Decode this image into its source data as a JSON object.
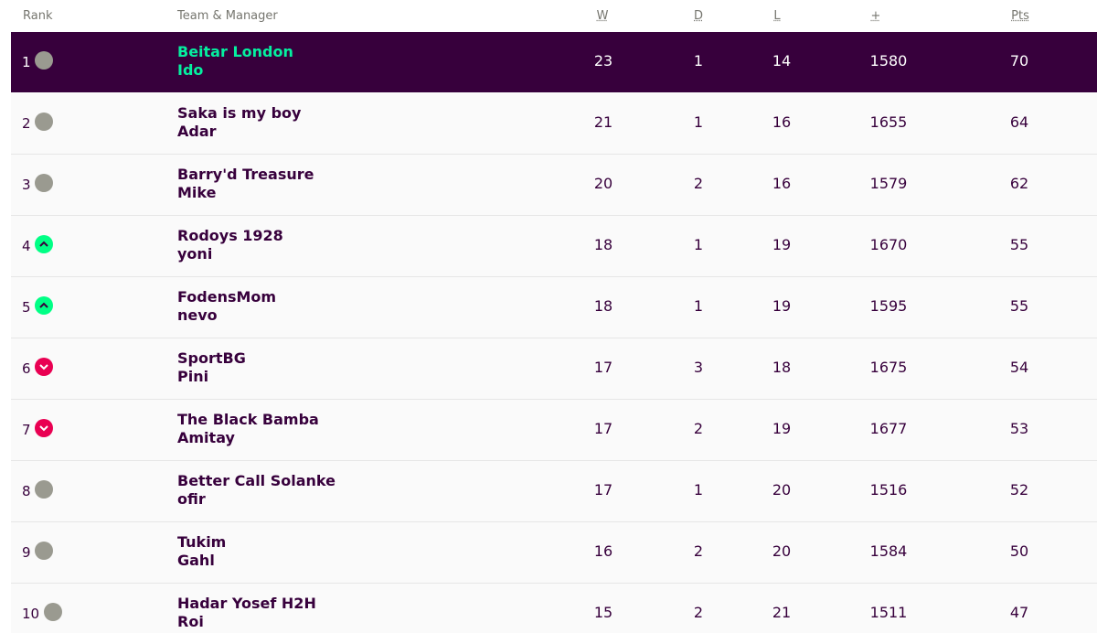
{
  "table": {
    "header": [
      "Rank",
      "Team & Manager",
      "W",
      "D",
      "L",
      "+",
      "Pts"
    ],
    "rows": [
      {
        "rank": 1,
        "team": "Beitar London",
        "manager": "Ido",
        "w": 23,
        "d": 1,
        "l": 14,
        "plus": 1580,
        "pts": 70
      },
      {
        "rank": 2,
        "team": "Saka is my boy",
        "manager": "Adar",
        "w": 21,
        "d": 1,
        "l": 16,
        "plus": 1655,
        "pts": 64
      },
      {
        "rank": 3,
        "team": "Barry'd Treasure",
        "manager": "Mike",
        "w": 20,
        "d": 2,
        "l": 16,
        "plus": 1579,
        "pts": 62
      },
      {
        "rank": 4,
        "team": "Rodoys 1928",
        "manager": "yoni",
        "w": 18,
        "d": 1,
        "l": 19,
        "plus": 1670,
        "pts": 55
      },
      {
        "rank": 5,
        "team": "FodensMom",
        "manager": "nevo",
        "w": 18,
        "d": 1,
        "l": 19,
        "plus": 1595,
        "pts": 55
      },
      {
        "rank": 6,
        "team": "SportBG",
        "manager": "Pini",
        "w": 17,
        "d": 3,
        "l": 18,
        "plus": 1675,
        "pts": 54
      },
      {
        "rank": 7,
        "team": "The Black Bamba",
        "manager": "Amitay",
        "w": 17,
        "d": 2,
        "l": 19,
        "plus": 1677,
        "pts": 53
      },
      {
        "rank": 8,
        "team": "Better Call Solanke",
        "manager": "ofir",
        "w": 17,
        "d": 1,
        "l": 20,
        "plus": 1516,
        "pts": 52
      },
      {
        "rank": 9,
        "team": "Tukim",
        "manager": "Gahl",
        "w": 16,
        "d": 2,
        "l": 20,
        "plus": 1584,
        "pts": 50
      },
      {
        "rank": 10,
        "team": "Hadar Yosef H2H",
        "manager": "Roi",
        "w": 15,
        "d": 2,
        "l": 21,
        "plus": 1511,
        "pts": 47
      }
    ]
  }
}
